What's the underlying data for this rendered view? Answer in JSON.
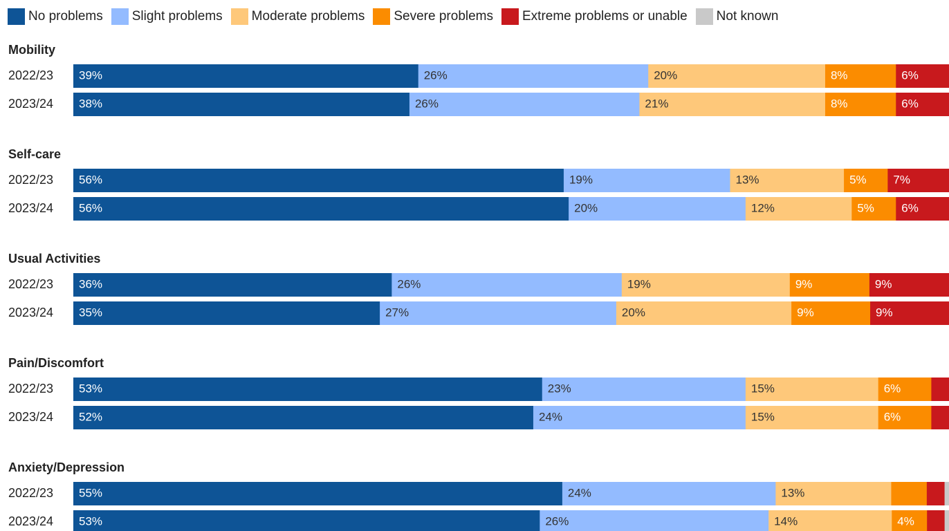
{
  "chart_data": {
    "type": "bar",
    "orientation": "horizontal",
    "stacked": true,
    "normalized": true,
    "series": [
      {
        "name": "No problems",
        "color": "#0e5496"
      },
      {
        "name": "Slight problems",
        "color": "#93bbff"
      },
      {
        "name": "Moderate problems",
        "color": "#fec87a"
      },
      {
        "name": "Severe problems",
        "color": "#fb8c00"
      },
      {
        "name": "Extreme problems or unable",
        "color": "#c8191d"
      },
      {
        "name": "Not known",
        "color": "#c9c9c9"
      }
    ],
    "groups": [
      {
        "title": "Mobility",
        "rows": [
          {
            "label": "2022/23",
            "values": [
              39,
              26,
              20,
              8,
              6,
              0
            ],
            "labels": [
              "39%",
              "26%",
              "20%",
              "8%",
              "6%",
              ""
            ]
          },
          {
            "label": "2023/24",
            "values": [
              38,
              26,
              21,
              8,
              6,
              0
            ],
            "labels": [
              "38%",
              "26%",
              "21%",
              "8%",
              "6%",
              ""
            ]
          }
        ]
      },
      {
        "title": "Self-care",
        "rows": [
          {
            "label": "2022/23",
            "values": [
              56,
              19,
              13,
              5,
              7,
              0
            ],
            "labels": [
              "56%",
              "19%",
              "13%",
              "5%",
              "7%",
              ""
            ]
          },
          {
            "label": "2023/24",
            "values": [
              56,
              20,
              12,
              5,
              6,
              0
            ],
            "labels": [
              "56%",
              "20%",
              "12%",
              "5%",
              "6%",
              ""
            ]
          }
        ]
      },
      {
        "title": "Usual Activities",
        "rows": [
          {
            "label": "2022/23",
            "values": [
              36,
              26,
              19,
              9,
              9,
              0
            ],
            "labels": [
              "36%",
              "26%",
              "19%",
              "9%",
              "9%",
              ""
            ]
          },
          {
            "label": "2023/24",
            "values": [
              35,
              27,
              20,
              9,
              9,
              0
            ],
            "labels": [
              "35%",
              "27%",
              "20%",
              "9%",
              "9%",
              ""
            ]
          }
        ]
      },
      {
        "title": "Pain/Discomfort",
        "rows": [
          {
            "label": "2022/23",
            "values": [
              53,
              23,
              15,
              6,
              2,
              0
            ],
            "labels": [
              "53%",
              "23%",
              "15%",
              "6%",
              "",
              ""
            ]
          },
          {
            "label": "2023/24",
            "values": [
              52,
              24,
              15,
              6,
              2,
              0
            ],
            "labels": [
              "52%",
              "24%",
              "15%",
              "6%",
              "",
              ""
            ]
          }
        ]
      },
      {
        "title": "Anxiety/Depression",
        "rows": [
          {
            "label": "2022/23",
            "values": [
              55,
              24,
              13,
              4,
              2,
              0.5
            ],
            "labels": [
              "55%",
              "24%",
              "13%",
              "",
              "",
              ""
            ]
          },
          {
            "label": "2023/24",
            "values": [
              53,
              26,
              14,
              4,
              2,
              0.5
            ],
            "labels": [
              "53%",
              "26%",
              "14%",
              "4%",
              "",
              ""
            ]
          }
        ]
      }
    ],
    "legend_position": "top-left",
    "grid": false,
    "title": "",
    "xlabel": "",
    "ylabel": ""
  }
}
